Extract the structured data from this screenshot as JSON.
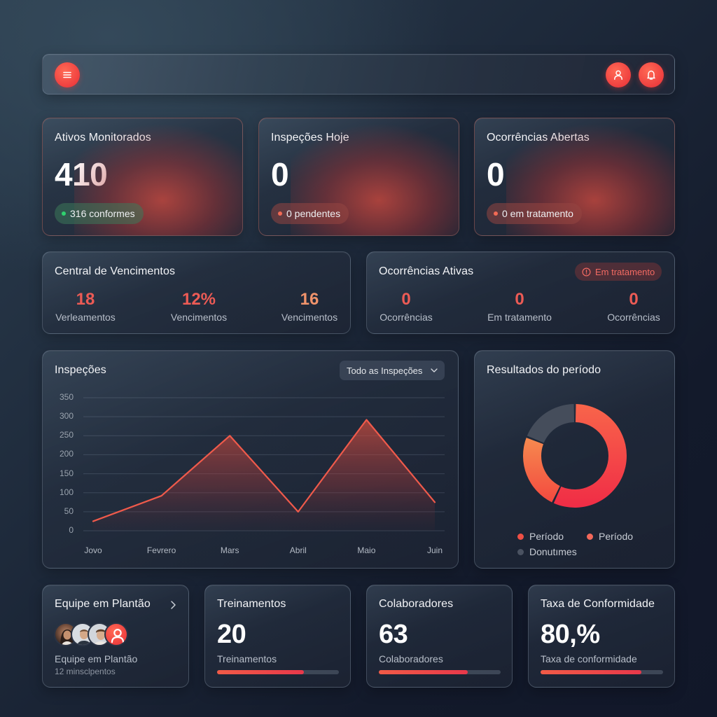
{
  "topbar": {
    "menu_icon": "hamburger-menu-icon",
    "user_icon": "user-icon",
    "bell_icon": "bell-icon",
    "accent": "#ef4444"
  },
  "kpis": [
    {
      "title": "Ativos Monitorados",
      "value": "410",
      "pill": "316 conformes",
      "pill_color": "#2fd26f"
    },
    {
      "title": "Inspeções Hoje",
      "value": "0",
      "pill": "0 pendentes",
      "pill_color": "#f26a55"
    },
    {
      "title": "Ocorrências Abertas",
      "value": "0",
      "pill": "0 em tratamento",
      "pill_color": "#f26a55"
    }
  ],
  "vencimentos": {
    "title": "Central de Vencimentos",
    "stats": [
      {
        "value": "18",
        "label": "Verleamentos",
        "color": "#ec5b55"
      },
      {
        "value": "12%",
        "label": "Vencimentos",
        "color": "#ec5b55"
      },
      {
        "value": "16",
        "label": "Vencimentos",
        "color": "#f0936b"
      }
    ]
  },
  "ocorrencias": {
    "title": "Ocorrências Ativas",
    "badge": "Em tratamento",
    "badge_icon": "alert-circle-icon",
    "stats": [
      {
        "value": "0",
        "label": "Ocorrências",
        "color": "#ec5b55"
      },
      {
        "value": "0",
        "label": "Em tratamento",
        "color": "#ec5b55"
      },
      {
        "value": "0",
        "label": "Ocorrências",
        "color": "#ec5b55"
      }
    ]
  },
  "inspecoes_chart": {
    "title": "Inspeções",
    "dropdown": "Todo as Inspeções"
  },
  "resultados": {
    "title": "Resultados do período",
    "legend": [
      {
        "label": "Período",
        "color": "#ee4f45"
      },
      {
        "label": "Período",
        "color": "#f3685a"
      },
      {
        "label": "Donutımes",
        "color": "#4a5261"
      }
    ]
  },
  "chart_data": [
    {
      "type": "area",
      "title": "Inspeções",
      "categories": [
        "Jovo",
        "Fevrero",
        "Mars",
        "Abril",
        "Maio",
        "Juin"
      ],
      "series": [
        {
          "name": "Inspeções",
          "values": [
            25,
            92,
            250,
            50,
            292,
            75
          ]
        }
      ],
      "yticks": [
        "0",
        "50",
        "100",
        "150",
        "200",
        "250",
        "300",
        "350"
      ],
      "ylim": [
        0,
        350
      ],
      "grid": true,
      "color": "#ef5a4b"
    },
    {
      "type": "pie",
      "title": "Resultados do período",
      "donut": true,
      "labels": [
        "Período",
        "Período",
        "Donutımes"
      ],
      "values": [
        57,
        24,
        19
      ],
      "colors": [
        "#f0403f",
        "#f57a4a",
        "#454d5b"
      ],
      "legend_position": "bottom"
    }
  ],
  "bottom": {
    "equipe": {
      "title": "Equipe em Plantão",
      "chevron_icon": "chevron-right-icon",
      "label": "Equipe em Plantão",
      "sublabel": "12 minsclpentos"
    },
    "treinamentos": {
      "title": "Treinamentos",
      "value": "20",
      "label": "Treinamentos",
      "progress": 71
    },
    "colaboradores": {
      "title": "Colaboradores",
      "value": "63",
      "label": "Colaboradores",
      "progress": 73
    },
    "conformidade": {
      "title": "Taxa de Conformidade",
      "value": "80,%",
      "label": "Taxa de conformidade",
      "progress": 82
    }
  }
}
